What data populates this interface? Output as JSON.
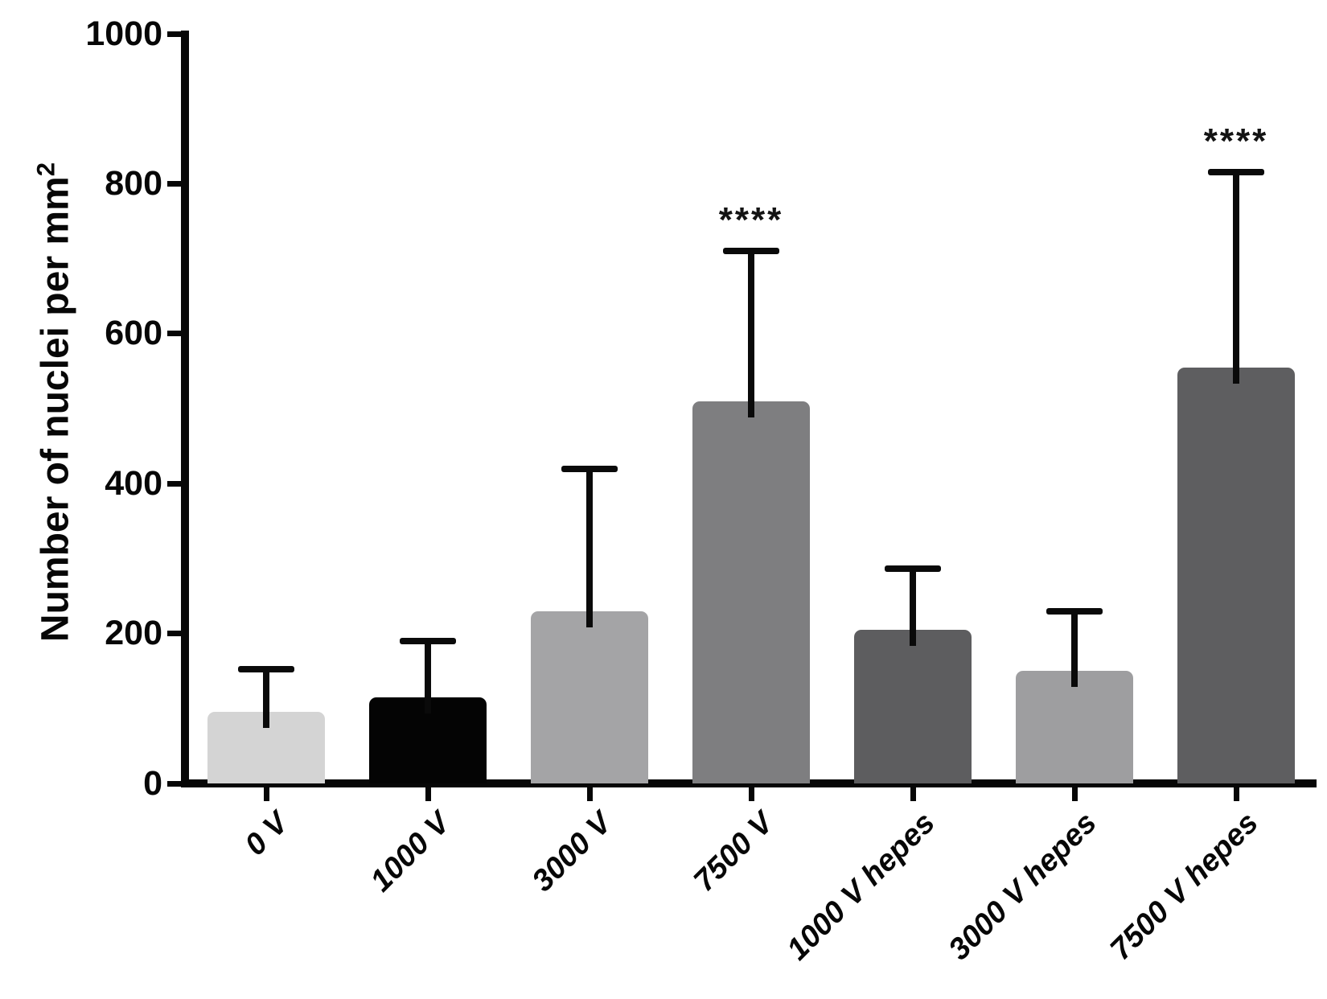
{
  "figure": {
    "background": "#ffffff",
    "axis_color": "#070707",
    "text_color": "#070707"
  },
  "chart_data": {
    "type": "bar",
    "title": "",
    "xlabel": "",
    "ylabel": "Number of nuclei per mm²",
    "ylabel_base": "Number of nuclei per mm",
    "ylabel_exponent": "2",
    "ylim": [
      0,
      1000
    ],
    "yticks": [
      "0",
      "200",
      "400",
      "600",
      "800",
      "1000"
    ],
    "ytick_values": [
      0,
      200,
      400,
      600,
      800,
      1000
    ],
    "grid": false,
    "legend_position": "none",
    "error_bars": "upper, capped",
    "categories": [
      "0 V",
      "1000 V",
      "3000 V",
      "7500 V",
      "1000 V hepes",
      "3000 V hepes",
      "7500 V hepes"
    ],
    "values": [
      95,
      115,
      230,
      510,
      205,
      150,
      555
    ],
    "errors_upper": [
      57,
      75,
      190,
      200,
      82,
      80,
      260
    ],
    "bar_colors": [
      "#d4d4d4",
      "#040404",
      "#a4a4a6",
      "#7e7e80",
      "#5d5d5f",
      "#9e9ea0",
      "#5e5e60"
    ],
    "significance": [
      {
        "category": "7500 V",
        "label": "****"
      },
      {
        "category": "7500 V hepes",
        "label": "****"
      }
    ]
  }
}
